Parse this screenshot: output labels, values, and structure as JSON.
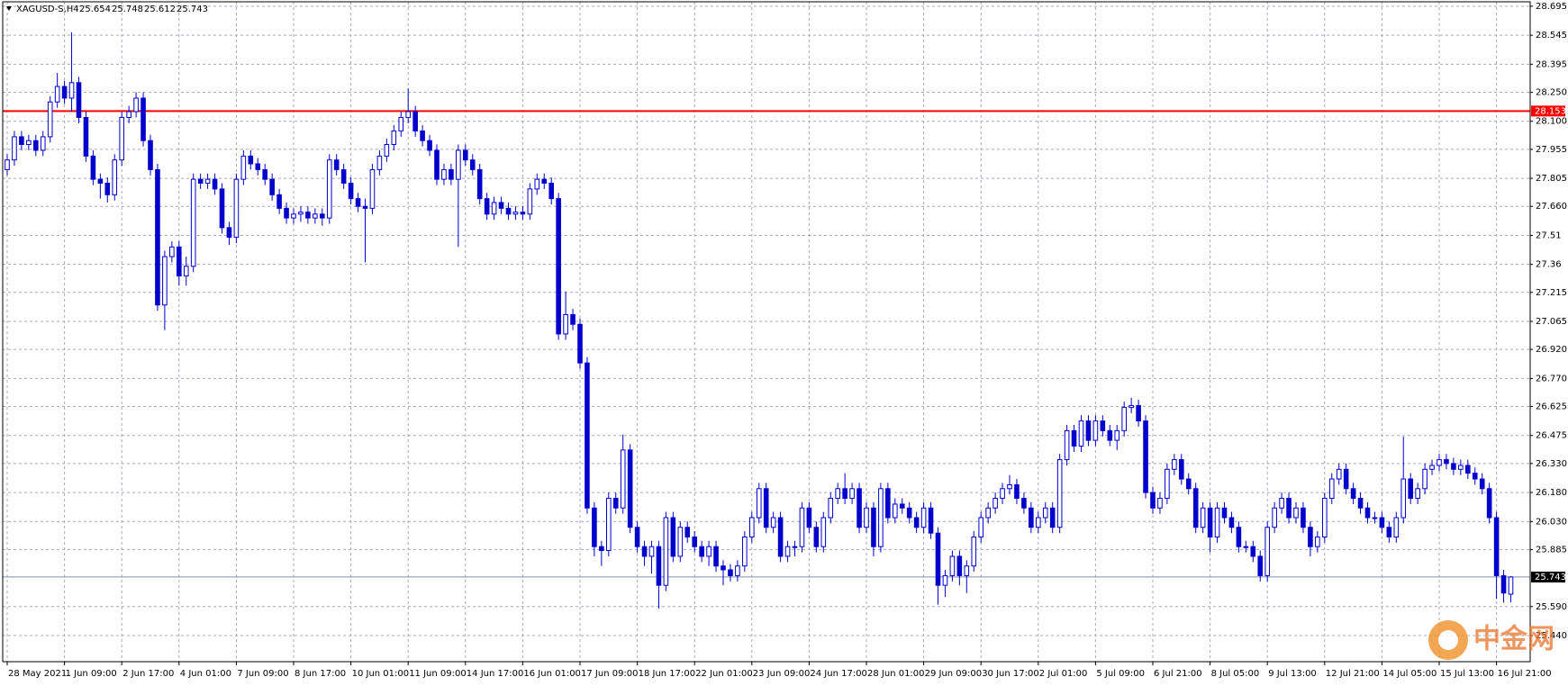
{
  "chart_data": {
    "type": "candlestick",
    "title": "XAGUSD-S,H4",
    "color": "#0000cd",
    "grid": true,
    "ylim": [
      25.305,
      28.718
    ],
    "yticks": [
      28.695,
      28.545,
      28.395,
      {
        "value": 28.25,
        "label": "28.250"
      },
      {
        "value": 28.1,
        "label": "28.100"
      },
      27.955,
      27.805,
      {
        "value": 27.66,
        "label": "27.660"
      },
      27.51,
      27.36,
      27.215,
      27.065,
      {
        "value": 26.92,
        "label": "26.920"
      },
      {
        "value": 26.77,
        "label": "26.770"
      },
      26.625,
      26.475,
      {
        "value": 26.33,
        "label": "26.330"
      },
      {
        "value": 26.18,
        "label": "26.180"
      },
      {
        "value": 26.03,
        "label": "26.030"
      },
      25.885,
      {
        "value": 25.59,
        "label": "25.590"
      },
      {
        "value": 25.44,
        "label": "25.440"
      }
    ],
    "hline": {
      "value": 28.153,
      "color": "#ff0000"
    },
    "current_price": 25.743,
    "watermark": "中金网",
    "categories": [
      "28 May 2021",
      null,
      null,
      null,
      null,
      null,
      null,
      null,
      "1 Jun 09:00",
      null,
      null,
      null,
      null,
      null,
      null,
      null,
      "2 Jun 17:00",
      null,
      null,
      null,
      null,
      null,
      null,
      null,
      "4 Jun 01:00",
      null,
      null,
      null,
      null,
      null,
      null,
      null,
      "7 Jun 09:00",
      null,
      null,
      null,
      null,
      null,
      null,
      null,
      "8 Jun 17:00",
      null,
      null,
      null,
      null,
      null,
      null,
      null,
      "10 Jun 01:00",
      null,
      null,
      null,
      null,
      null,
      null,
      null,
      "11 Jun 09:00",
      null,
      null,
      null,
      null,
      null,
      null,
      null,
      "14 Jun 17:00",
      null,
      null,
      null,
      null,
      null,
      null,
      null,
      "16 Jun 01:00",
      null,
      null,
      null,
      null,
      null,
      null,
      null,
      "17 Jun 09:00",
      null,
      null,
      null,
      null,
      null,
      null,
      null,
      "18 Jun 17:00",
      null,
      null,
      null,
      null,
      null,
      null,
      null,
      "22 Jun 01:00",
      null,
      null,
      null,
      null,
      null,
      null,
      null,
      "23 Jun 09:00",
      null,
      null,
      null,
      null,
      null,
      null,
      null,
      "24 Jun 17:00",
      null,
      null,
      null,
      null,
      null,
      null,
      null,
      "28 Jun 01:00",
      null,
      null,
      null,
      null,
      null,
      null,
      null,
      "29 Jun 09:00",
      null,
      null,
      null,
      null,
      null,
      null,
      null,
      "30 Jun 17:00",
      null,
      null,
      null,
      null,
      null,
      null,
      null,
      "2 Jul 01:00",
      null,
      null,
      null,
      null,
      null,
      null,
      null,
      "5 Jul 09:00",
      null,
      null,
      null,
      null,
      null,
      null,
      null,
      "6 Jul 21:00",
      null,
      null,
      null,
      null,
      null,
      null,
      null,
      "8 Jul 05:00",
      null,
      null,
      null,
      null,
      null,
      null,
      null,
      "9 Jul 13:00",
      null,
      null,
      null,
      null,
      null,
      null,
      null,
      "12 Jul 21:00",
      null,
      null,
      null,
      null,
      null,
      null,
      null,
      "14 Jul 05:00",
      null,
      null,
      null,
      null,
      null,
      null,
      null,
      "15 Jul 13:00",
      null,
      null,
      null,
      null,
      null,
      null,
      null,
      "16 Jul 21:00",
      null,
      null
    ],
    "ohlc": [
      [
        27.85,
        27.93,
        27.82,
        27.9
      ],
      [
        27.9,
        28.05,
        27.87,
        28.02
      ],
      [
        28.02,
        28.05,
        27.95,
        27.98
      ],
      [
        27.98,
        28.03,
        27.95,
        28
      ],
      [
        28,
        28.03,
        27.92,
        27.95
      ],
      [
        27.95,
        28.05,
        27.92,
        28.02
      ],
      [
        28.02,
        28.23,
        27.99,
        28.2
      ],
      [
        28.2,
        28.35,
        28.17,
        28.28
      ],
      [
        28.28,
        28.31,
        28.19,
        28.22
      ],
      [
        28.22,
        28.56,
        28.15,
        28.3
      ],
      [
        28.3,
        28.33,
        28.09,
        28.12
      ],
      [
        28.12,
        28.15,
        27.89,
        27.92
      ],
      [
        27.92,
        27.95,
        27.77,
        27.8
      ],
      [
        27.8,
        27.83,
        27.7,
        27.78
      ],
      [
        27.78,
        27.81,
        27.68,
        27.72
      ],
      [
        27.72,
        27.93,
        27.69,
        27.9
      ],
      [
        27.9,
        28.15,
        27.87,
        28.12
      ],
      [
        28.12,
        28.18,
        28.09,
        28.15
      ],
      [
        28.15,
        28.25,
        28.12,
        28.22
      ],
      [
        28.22,
        28.25,
        27.97,
        28
      ],
      [
        28,
        28.03,
        27.82,
        27.85
      ],
      [
        27.85,
        27.88,
        27.12,
        27.15
      ],
      [
        27.15,
        27.43,
        27.02,
        27.4
      ],
      [
        27.4,
        27.48,
        27.37,
        27.45
      ],
      [
        27.45,
        27.48,
        27.25,
        27.3
      ],
      [
        27.3,
        27.4,
        27.25,
        27.35
      ],
      [
        27.35,
        27.83,
        27.32,
        27.8
      ],
      [
        27.8,
        27.83,
        27.75,
        27.78
      ],
      [
        27.78,
        27.83,
        27.75,
        27.8
      ],
      [
        27.8,
        27.83,
        27.72,
        27.75
      ],
      [
        27.75,
        27.78,
        27.52,
        27.55
      ],
      [
        27.55,
        27.58,
        27.46,
        27.5
      ],
      [
        27.5,
        27.83,
        27.47,
        27.8
      ],
      [
        27.8,
        27.95,
        27.77,
        27.92
      ],
      [
        27.92,
        27.95,
        27.85,
        27.88
      ],
      [
        27.88,
        27.91,
        27.82,
        27.85
      ],
      [
        27.85,
        27.88,
        27.77,
        27.8
      ],
      [
        27.8,
        27.83,
        27.69,
        27.72
      ],
      [
        27.72,
        27.75,
        27.62,
        27.65
      ],
      [
        27.65,
        27.68,
        27.57,
        27.6
      ],
      [
        27.6,
        27.65,
        27.57,
        27.62
      ],
      [
        27.62,
        27.66,
        27.58,
        27.63
      ],
      [
        27.63,
        27.66,
        27.57,
        27.6
      ],
      [
        27.6,
        27.65,
        27.57,
        27.62
      ],
      [
        27.62,
        27.65,
        27.56,
        27.6
      ],
      [
        27.6,
        27.93,
        27.57,
        27.9
      ],
      [
        27.9,
        27.93,
        27.82,
        27.85
      ],
      [
        27.85,
        27.88,
        27.75,
        27.78
      ],
      [
        27.78,
        27.81,
        27.67,
        27.7
      ],
      [
        27.7,
        27.73,
        27.63,
        27.66
      ],
      [
        27.66,
        27.7,
        27.37,
        27.65
      ],
      [
        27.65,
        27.88,
        27.62,
        27.85
      ],
      [
        27.85,
        27.95,
        27.82,
        27.92
      ],
      [
        27.92,
        28.01,
        27.89,
        27.98
      ],
      [
        27.98,
        28.08,
        27.95,
        28.05
      ],
      [
        28.05,
        28.15,
        28.02,
        28.12
      ],
      [
        28.12,
        28.27,
        28.09,
        28.15
      ],
      [
        28.15,
        28.18,
        28.02,
        28.05
      ],
      [
        28.05,
        28.08,
        27.97,
        28
      ],
      [
        28,
        28.03,
        27.92,
        27.95
      ],
      [
        27.95,
        27.98,
        27.77,
        27.8
      ],
      [
        27.8,
        27.88,
        27.77,
        27.85
      ],
      [
        27.85,
        27.88,
        27.77,
        27.8
      ],
      [
        27.8,
        27.98,
        27.45,
        27.95
      ],
      [
        27.95,
        27.98,
        27.87,
        27.9
      ],
      [
        27.9,
        27.93,
        27.82,
        27.85
      ],
      [
        27.85,
        27.88,
        27.67,
        27.7
      ],
      [
        27.7,
        27.73,
        27.59,
        27.62
      ],
      [
        27.62,
        27.71,
        27.59,
        27.68
      ],
      [
        27.68,
        27.71,
        27.62,
        27.65
      ],
      [
        27.65,
        27.68,
        27.59,
        27.62
      ],
      [
        27.62,
        27.66,
        27.59,
        27.63
      ],
      [
        27.63,
        27.66,
        27.59,
        27.62
      ],
      [
        27.62,
        27.78,
        27.59,
        27.75
      ],
      [
        27.75,
        27.83,
        27.72,
        27.8
      ],
      [
        27.8,
        27.83,
        27.75,
        27.78
      ],
      [
        27.78,
        27.81,
        27.67,
        27.7
      ],
      [
        27.7,
        27.73,
        26.97,
        27
      ],
      [
        27,
        27.22,
        26.97,
        27.1
      ],
      [
        27.1,
        27.13,
        27.02,
        27.05
      ],
      [
        27.05,
        27.08,
        26.82,
        26.85
      ],
      [
        26.85,
        26.88,
        26.07,
        26.1
      ],
      [
        26.1,
        26.13,
        25.85,
        25.9
      ],
      [
        25.9,
        25.93,
        25.8,
        25.88
      ],
      [
        25.88,
        26.18,
        25.85,
        26.15
      ],
      [
        26.15,
        26.18,
        26.07,
        26.1
      ],
      [
        26.1,
        26.48,
        26.07,
        26.4
      ],
      [
        26.4,
        26.43,
        25.97,
        26
      ],
      [
        26,
        26.03,
        25.87,
        25.9
      ],
      [
        25.9,
        25.93,
        25.8,
        25.85
      ],
      [
        25.85,
        25.93,
        25.76,
        25.9
      ],
      [
        25.9,
        25.93,
        25.58,
        25.7
      ],
      [
        25.7,
        26.08,
        25.67,
        26.05
      ],
      [
        26.05,
        26.08,
        25.82,
        25.85
      ],
      [
        25.85,
        26.03,
        25.82,
        26
      ],
      [
        26,
        26.03,
        25.92,
        25.95
      ],
      [
        25.95,
        25.98,
        25.87,
        25.9
      ],
      [
        25.9,
        25.93,
        25.82,
        25.85
      ],
      [
        25.85,
        25.93,
        25.8,
        25.9
      ],
      [
        25.9,
        25.93,
        25.77,
        25.8
      ],
      [
        25.8,
        25.83,
        25.7,
        25.78
      ],
      [
        25.78,
        25.81,
        25.72,
        25.75
      ],
      [
        25.75,
        25.83,
        25.72,
        25.8
      ],
      [
        25.8,
        25.98,
        25.77,
        25.95
      ],
      [
        25.95,
        26.08,
        25.92,
        26.05
      ],
      [
        26.05,
        26.23,
        26.02,
        26.2
      ],
      [
        26.2,
        26.23,
        25.97,
        26
      ],
      [
        26,
        26.08,
        25.97,
        26.05
      ],
      [
        26.05,
        26.08,
        25.82,
        25.85
      ],
      [
        25.85,
        25.93,
        25.82,
        25.9
      ],
      [
        25.9,
        25.93,
        25.85,
        25.9
      ],
      [
        25.9,
        26.13,
        25.87,
        26.1
      ],
      [
        26.1,
        26.13,
        25.97,
        26
      ],
      [
        26,
        26.03,
        25.87,
        25.9
      ],
      [
        25.9,
        26.08,
        25.87,
        26.05
      ],
      [
        26.05,
        26.18,
        26.02,
        26.15
      ],
      [
        26.15,
        26.23,
        26.12,
        26.2
      ],
      [
        26.2,
        26.28,
        26.12,
        26.15
      ],
      [
        26.15,
        26.23,
        26.12,
        26.2
      ],
      [
        26.2,
        26.23,
        25.97,
        26
      ],
      [
        26,
        26.13,
        25.97,
        26.1
      ],
      [
        26.1,
        26.13,
        25.85,
        25.9
      ],
      [
        25.9,
        26.23,
        25.87,
        26.2
      ],
      [
        26.2,
        26.23,
        26.02,
        26.05
      ],
      [
        26.05,
        26.15,
        26.02,
        26.12
      ],
      [
        26.12,
        26.15,
        26.07,
        26.1
      ],
      [
        26.1,
        26.13,
        26.02,
        26.05
      ],
      [
        26.05,
        26.08,
        25.97,
        26
      ],
      [
        26,
        26.13,
        25.97,
        26.1
      ],
      [
        26.1,
        26.13,
        25.94,
        25.97
      ],
      [
        25.97,
        26,
        25.6,
        25.7
      ],
      [
        25.7,
        25.78,
        25.64,
        25.75
      ],
      [
        25.75,
        25.88,
        25.72,
        25.85
      ],
      [
        25.85,
        25.88,
        25.7,
        25.75
      ],
      [
        25.75,
        25.83,
        25.66,
        25.8
      ],
      [
        25.8,
        25.98,
        25.77,
        25.95
      ],
      [
        25.95,
        26.08,
        25.92,
        26.05
      ],
      [
        26.05,
        26.13,
        26.02,
        26.1
      ],
      [
        26.1,
        26.18,
        26.07,
        26.15
      ],
      [
        26.15,
        26.23,
        26.12,
        26.2
      ],
      [
        26.2,
        26.27,
        26.17,
        26.22
      ],
      [
        26.22,
        26.25,
        26.12,
        26.15
      ],
      [
        26.15,
        26.18,
        26.07,
        26.1
      ],
      [
        26.1,
        26.13,
        25.97,
        26
      ],
      [
        26,
        26.08,
        25.97,
        26.05
      ],
      [
        26.05,
        26.13,
        26.02,
        26.1
      ],
      [
        26.1,
        26.13,
        25.97,
        26
      ],
      [
        26,
        26.38,
        25.97,
        26.35
      ],
      [
        26.35,
        26.53,
        26.32,
        26.5
      ],
      [
        26.5,
        26.53,
        26.39,
        26.42
      ],
      [
        26.42,
        26.58,
        26.39,
        26.55
      ],
      [
        26.55,
        26.58,
        26.42,
        26.45
      ],
      [
        26.45,
        26.58,
        26.42,
        26.55
      ],
      [
        26.55,
        26.58,
        26.47,
        26.5
      ],
      [
        26.5,
        26.53,
        26.42,
        26.45
      ],
      [
        26.45,
        26.53,
        26.4,
        26.5
      ],
      [
        26.5,
        26.65,
        26.47,
        26.62
      ],
      [
        26.62,
        26.67,
        26.59,
        26.63
      ],
      [
        26.63,
        26.66,
        26.52,
        26.55
      ],
      [
        26.55,
        26.58,
        26.15,
        26.18
      ],
      [
        26.18,
        26.21,
        26.07,
        26.1
      ],
      [
        26.1,
        26.18,
        26.07,
        26.15
      ],
      [
        26.15,
        26.33,
        26.12,
        26.3
      ],
      [
        26.3,
        26.38,
        26.27,
        26.35
      ],
      [
        26.35,
        26.38,
        26.22,
        26.25
      ],
      [
        26.25,
        26.28,
        26.17,
        26.2
      ],
      [
        26.2,
        26.23,
        25.97,
        26
      ],
      [
        26,
        26.13,
        25.97,
        26.1
      ],
      [
        26.1,
        26.13,
        25.87,
        25.95
      ],
      [
        25.95,
        26.13,
        25.92,
        26.1
      ],
      [
        26.1,
        26.13,
        26.02,
        26.05
      ],
      [
        26.05,
        26.08,
        25.97,
        26
      ],
      [
        26,
        26.03,
        25.87,
        25.9
      ],
      [
        25.9,
        25.93,
        25.87,
        25.9
      ],
      [
        25.9,
        25.93,
        25.82,
        25.85
      ],
      [
        25.85,
        25.88,
        25.72,
        25.75
      ],
      [
        25.75,
        26.03,
        25.72,
        26
      ],
      [
        26,
        26.13,
        25.97,
        26.1
      ],
      [
        26.1,
        26.18,
        26.07,
        26.15
      ],
      [
        26.15,
        26.18,
        26.02,
        26.05
      ],
      [
        26.05,
        26.13,
        26.02,
        26.1
      ],
      [
        26.1,
        26.13,
        25.97,
        26
      ],
      [
        26,
        26.03,
        25.85,
        25.9
      ],
      [
        25.9,
        25.98,
        25.87,
        25.95
      ],
      [
        25.95,
        26.18,
        25.92,
        26.15
      ],
      [
        26.15,
        26.28,
        26.12,
        26.25
      ],
      [
        26.25,
        26.33,
        26.22,
        26.3
      ],
      [
        26.3,
        26.33,
        26.17,
        26.2
      ],
      [
        26.2,
        26.23,
        26.12,
        26.15
      ],
      [
        26.15,
        26.18,
        26.07,
        26.1
      ],
      [
        26.1,
        26.13,
        26.02,
        26.05
      ],
      [
        26.05,
        26.08,
        26.02,
        26.05
      ],
      [
        26.05,
        26.08,
        25.97,
        26
      ],
      [
        26,
        26.03,
        25.92,
        25.95
      ],
      [
        25.95,
        26.08,
        25.92,
        26.05
      ],
      [
        26.05,
        26.47,
        26.02,
        26.25
      ],
      [
        26.25,
        26.28,
        26.12,
        26.15
      ],
      [
        26.15,
        26.23,
        26.12,
        26.2
      ],
      [
        26.2,
        26.33,
        26.17,
        26.3
      ],
      [
        26.3,
        26.35,
        26.27,
        26.32
      ],
      [
        26.32,
        26.38,
        26.29,
        26.35
      ],
      [
        26.35,
        26.38,
        26.3,
        26.33
      ],
      [
        26.33,
        26.36,
        26.27,
        26.3
      ],
      [
        26.3,
        26.35,
        26.27,
        26.32
      ],
      [
        26.32,
        26.35,
        26.25,
        26.28
      ],
      [
        26.28,
        26.31,
        26.22,
        26.25
      ],
      [
        26.25,
        26.28,
        26.17,
        26.2
      ],
      [
        26.2,
        26.23,
        26.02,
        26.05
      ],
      [
        26.05,
        26.08,
        25.63,
        25.75
      ],
      [
        25.75,
        25.78,
        25.61,
        25.66
      ],
      [
        25.654,
        25.748,
        25.612,
        25.743
      ]
    ]
  }
}
